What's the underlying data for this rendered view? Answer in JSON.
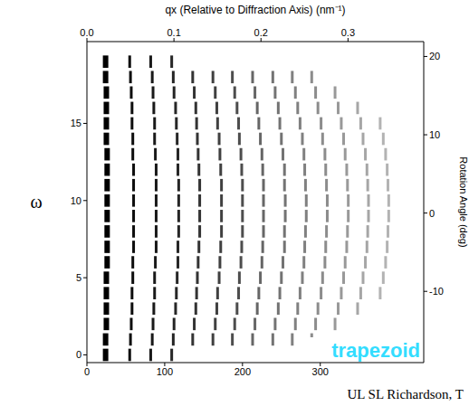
{
  "chart_data": {
    "type": "scatter",
    "marker": "dash",
    "grid": false,
    "x2_label": "qx (Relative to Diffraction Axis) (nm⁻¹)",
    "ylabel": "ω",
    "y2label": "Rotation Angle (deg)",
    "xlim": [
      0,
      433
    ],
    "xticks": [
      0,
      100,
      200,
      300
    ],
    "x2lim": [
      0,
      0.387
    ],
    "x2ticks": [
      {
        "value": 0,
        "label": "0.0"
      },
      0.1,
      0.2,
      0.3
    ],
    "ylim": [
      -0.5,
      20.3
    ],
    "yticks": [
      0,
      5,
      10,
      15
    ],
    "y2lim": [
      -19.1,
      21.9
    ],
    "y2ticks": [
      -10,
      0,
      10,
      20
    ],
    "annotations": [
      {
        "text": "trapezoid",
        "color": "#33ddff"
      },
      {
        "text": "UL SL Richardson, T"
      }
    ],
    "intensity": [
      1,
      0.95,
      0.9,
      0.85,
      0.8,
      0.75,
      0.7,
      0.6,
      0.55,
      0.5,
      0.45,
      0.4,
      0.35,
      0.3
    ],
    "rows": [
      {
        "y": 0,
        "x": [
          24,
          55,
          82,
          109
        ]
      },
      {
        "y": 1,
        "x": [
          24,
          56,
          84,
          111,
          136,
          162,
          187,
          213,
          239,
          264,
          289
        ]
      },
      {
        "y": 2,
        "x": [
          25,
          57,
          85,
          112,
          138,
          165,
          190,
          216,
          242,
          268,
          294,
          319
        ]
      },
      {
        "y": 3,
        "x": [
          25,
          58,
          86,
          114,
          140,
          167,
          193,
          219,
          246,
          271,
          297,
          323,
          348
        ]
      },
      {
        "y": 4,
        "x": [
          25,
          58,
          87,
          115,
          141,
          168,
          195,
          221,
          248,
          274,
          301,
          327,
          352,
          377
        ]
      },
      {
        "y": 5,
        "x": [
          25,
          59,
          87,
          116,
          142,
          170,
          196,
          223,
          250,
          277,
          303,
          330,
          355,
          381
        ]
      },
      {
        "y": 6,
        "x": [
          26,
          59,
          88,
          117,
          143,
          171,
          198,
          225,
          252,
          279,
          306,
          332,
          358,
          384
        ]
      },
      {
        "y": 7,
        "x": [
          26,
          60,
          89,
          117,
          144,
          172,
          199,
          226,
          254,
          280,
          307,
          334,
          360,
          386
        ]
      },
      {
        "y": 8,
        "x": [
          26,
          60,
          89,
          118,
          145,
          173,
          200,
          227,
          254,
          281,
          308,
          335,
          361,
          387
        ]
      },
      {
        "y": 9,
        "x": [
          26,
          60,
          89,
          118,
          145,
          173,
          200,
          227,
          255,
          282,
          309,
          336,
          362,
          388
        ]
      },
      {
        "y": 10,
        "x": [
          26,
          60,
          89,
          118,
          145,
          173,
          200,
          227,
          255,
          282,
          309,
          336,
          362,
          388
        ]
      },
      {
        "y": 11,
        "x": [
          26,
          60,
          89,
          118,
          145,
          173,
          200,
          227,
          254,
          281,
          308,
          335,
          361,
          387
        ]
      },
      {
        "y": 12,
        "x": [
          26,
          60,
          89,
          117,
          144,
          172,
          199,
          226,
          254,
          280,
          307,
          334,
          360,
          386
        ]
      },
      {
        "y": 13,
        "x": [
          26,
          59,
          88,
          117,
          143,
          171,
          198,
          225,
          252,
          279,
          306,
          332,
          358,
          384
        ]
      },
      {
        "y": 14,
        "x": [
          25,
          59,
          87,
          116,
          142,
          170,
          196,
          223,
          250,
          277,
          303,
          330,
          355,
          381
        ]
      },
      {
        "y": 15,
        "x": [
          25,
          58,
          87,
          115,
          141,
          168,
          195,
          221,
          248,
          274,
          301,
          327,
          352,
          377
        ]
      },
      {
        "y": 16,
        "x": [
          25,
          58,
          86,
          114,
          140,
          167,
          193,
          219,
          246,
          271,
          297,
          323,
          348
        ]
      },
      {
        "y": 17,
        "x": [
          25,
          57,
          85,
          112,
          138,
          165,
          190,
          216,
          242,
          268,
          294,
          319
        ]
      },
      {
        "y": 18,
        "x": [
          24,
          56,
          84,
          111,
          136,
          162,
          187,
          213,
          239,
          264,
          289
        ]
      },
      {
        "y": 19,
        "x": [
          24,
          55,
          82,
          109
        ]
      }
    ]
  }
}
